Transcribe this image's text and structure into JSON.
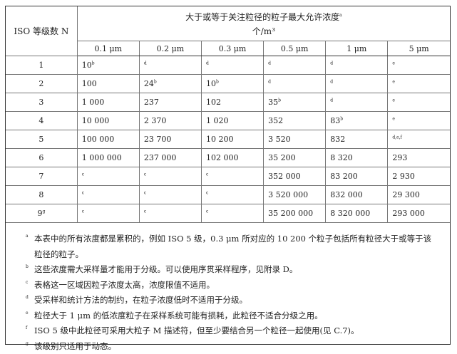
{
  "header": {
    "class_label": "ISO 等级数 N",
    "title": "大于或等于关注粒径的粒子最大允许浓度",
    "title_sup": "a",
    "unit": "个/m³",
    "sizes": [
      "0.1 μm",
      "0.2 μm",
      "0.3 μm",
      "0.5 μm",
      "1 μm",
      "5 μm"
    ]
  },
  "rows": [
    {
      "cls": "1",
      "cls_sup": "",
      "cells": [
        {
          "v": "10",
          "s": "b"
        },
        {
          "v": "",
          "s": "d"
        },
        {
          "v": "",
          "s": "d"
        },
        {
          "v": "",
          "s": "d"
        },
        {
          "v": "",
          "s": "d"
        },
        {
          "v": "",
          "s": "e"
        }
      ]
    },
    {
      "cls": "2",
      "cls_sup": "",
      "cells": [
        {
          "v": "100",
          "s": ""
        },
        {
          "v": "24",
          "s": "b"
        },
        {
          "v": "10",
          "s": "b"
        },
        {
          "v": "",
          "s": "d"
        },
        {
          "v": "",
          "s": "d"
        },
        {
          "v": "",
          "s": "e"
        }
      ]
    },
    {
      "cls": "3",
      "cls_sup": "",
      "cells": [
        {
          "v": "1 000",
          "s": ""
        },
        {
          "v": "237",
          "s": ""
        },
        {
          "v": "102",
          "s": ""
        },
        {
          "v": "35",
          "s": "b"
        },
        {
          "v": "",
          "s": "d"
        },
        {
          "v": "",
          "s": "e"
        }
      ]
    },
    {
      "cls": "4",
      "cls_sup": "",
      "cells": [
        {
          "v": "10 000",
          "s": ""
        },
        {
          "v": "2 370",
          "s": ""
        },
        {
          "v": "1 020",
          "s": ""
        },
        {
          "v": "352",
          "s": ""
        },
        {
          "v": "83",
          "s": "b"
        },
        {
          "v": "",
          "s": "e"
        }
      ]
    },
    {
      "cls": "5",
      "cls_sup": "",
      "cells": [
        {
          "v": "100 000",
          "s": ""
        },
        {
          "v": "23 700",
          "s": ""
        },
        {
          "v": "10 200",
          "s": ""
        },
        {
          "v": "3 520",
          "s": ""
        },
        {
          "v": "832",
          "s": ""
        },
        {
          "v": "",
          "s": "d,e,f"
        }
      ]
    },
    {
      "cls": "6",
      "cls_sup": "",
      "cells": [
        {
          "v": "1 000 000",
          "s": ""
        },
        {
          "v": "237 000",
          "s": ""
        },
        {
          "v": "102 000",
          "s": ""
        },
        {
          "v": "35 200",
          "s": ""
        },
        {
          "v": "8 320",
          "s": ""
        },
        {
          "v": "293",
          "s": ""
        }
      ]
    },
    {
      "cls": "7",
      "cls_sup": "",
      "cells": [
        {
          "v": "",
          "s": "c"
        },
        {
          "v": "",
          "s": "c"
        },
        {
          "v": "",
          "s": "c"
        },
        {
          "v": "352 000",
          "s": ""
        },
        {
          "v": "83 200",
          "s": ""
        },
        {
          "v": "2 930",
          "s": ""
        }
      ]
    },
    {
      "cls": "8",
      "cls_sup": "",
      "cells": [
        {
          "v": "",
          "s": "c"
        },
        {
          "v": "",
          "s": "c"
        },
        {
          "v": "",
          "s": "c"
        },
        {
          "v": "3 520 000",
          "s": ""
        },
        {
          "v": "832 000",
          "s": ""
        },
        {
          "v": "29 300",
          "s": ""
        }
      ]
    },
    {
      "cls": "9",
      "cls_sup": "g",
      "cells": [
        {
          "v": "",
          "s": "c"
        },
        {
          "v": "",
          "s": "c"
        },
        {
          "v": "",
          "s": "c"
        },
        {
          "v": "35 200 000",
          "s": ""
        },
        {
          "v": "8 320 000",
          "s": ""
        },
        {
          "v": "293 000",
          "s": ""
        }
      ]
    }
  ],
  "notes": [
    {
      "k": "a",
      "t": "本表中的所有浓度都是累积的，例如 ISO 5 级，0.3 μm 所对应的 10 200 个粒子包括所有粒径大于或等于该粒径的粒子。"
    },
    {
      "k": "b",
      "t": "这些浓度需大采样量才能用于分级。可以使用序贯采样程序，见附录 D。"
    },
    {
      "k": "c",
      "t": "表格这一区域因粒子浓度太高，浓度限值不适用。"
    },
    {
      "k": "d",
      "t": "受采样和统计方法的制约，在粒子浓度低时不适用于分级。"
    },
    {
      "k": "e",
      "t": "粒径大于 1 μm 的低浓度粒子在采样系统可能有损耗，此粒径不适合分级之用。"
    },
    {
      "k": "f",
      "t": "ISO 5 级中此粒径可采用大粒子 M 描述符，但至少要结合另一个粒径一起使用(见 C.7)。"
    },
    {
      "k": "g",
      "t": "该级别只适用于动态。"
    }
  ]
}
